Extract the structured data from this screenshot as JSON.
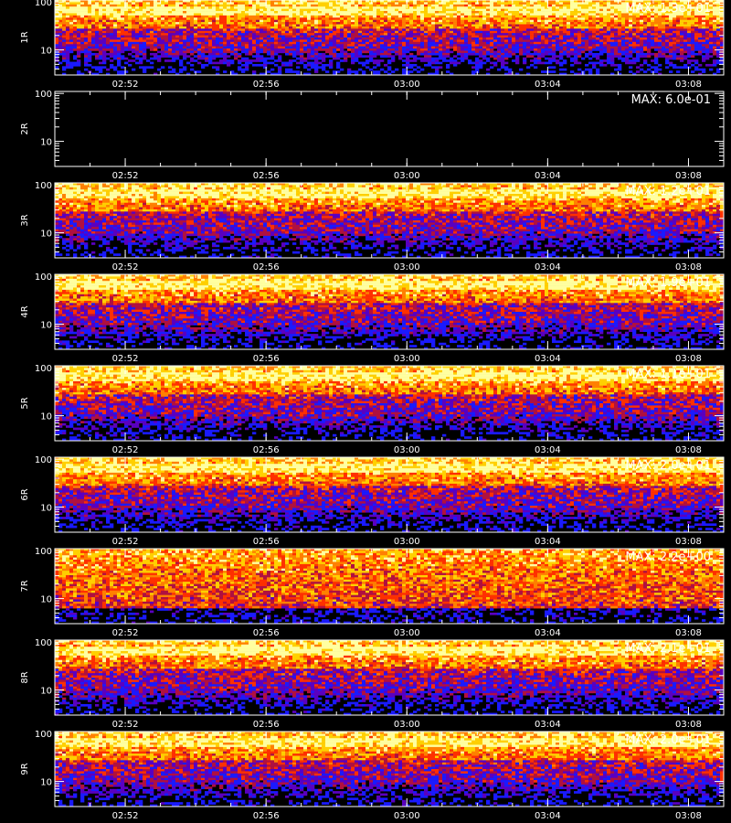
{
  "chart_data": {
    "type": "heatmap",
    "subtype": "stacked spectrograms",
    "y_scale": "log",
    "ylim": [
      3,
      110
    ],
    "y_ticks": [
      {
        "value": 10,
        "label": "10"
      },
      {
        "value": 100,
        "label": "100"
      }
    ],
    "x_range": [
      "02:50",
      "03:09"
    ],
    "x_ticks": [
      "02:52",
      "02:56",
      "03:00",
      "03:04",
      "03:08"
    ],
    "colors": [
      "#000000",
      "#1a1aff",
      "#5a00c0",
      "#b01040",
      "#ff3000",
      "#ff8000",
      "#ffd000",
      "#ffffa0"
    ],
    "panels": [
      {
        "id": "1R",
        "ylabel": "1R",
        "max_label": "MAX: 1.3e+01",
        "max": 13.0,
        "empty": false
      },
      {
        "id": "2R",
        "ylabel": "2R",
        "max_label": "MAX: 6.0e-01",
        "max": 0.6,
        "empty": true
      },
      {
        "id": "3R",
        "ylabel": "3R",
        "max_label": "MAX: 1.2e+01",
        "max": 12.0,
        "empty": false
      },
      {
        "id": "4R",
        "ylabel": "4R",
        "max_label": "MAX: 1.9e+01",
        "max": 19.0,
        "empty": false
      },
      {
        "id": "5R",
        "ylabel": "5R",
        "max_label": "MAX: 1.1e+01",
        "max": 11.0,
        "empty": false
      },
      {
        "id": "6R",
        "ylabel": "6R",
        "max_label": "MAX: 2.0e+01",
        "max": 20.0,
        "empty": false
      },
      {
        "id": "7R",
        "ylabel": "7R",
        "max_label": "MAX: 2.2e+00",
        "max": 2.2,
        "empty": false
      },
      {
        "id": "8R",
        "ylabel": "8R",
        "max_label": "MAX: 2.1e+01",
        "max": 21.0,
        "empty": false
      },
      {
        "id": "9R",
        "ylabel": "9R",
        "max_label": "MAX: 2.0e+01",
        "max": 20.0,
        "empty": false
      }
    ]
  }
}
